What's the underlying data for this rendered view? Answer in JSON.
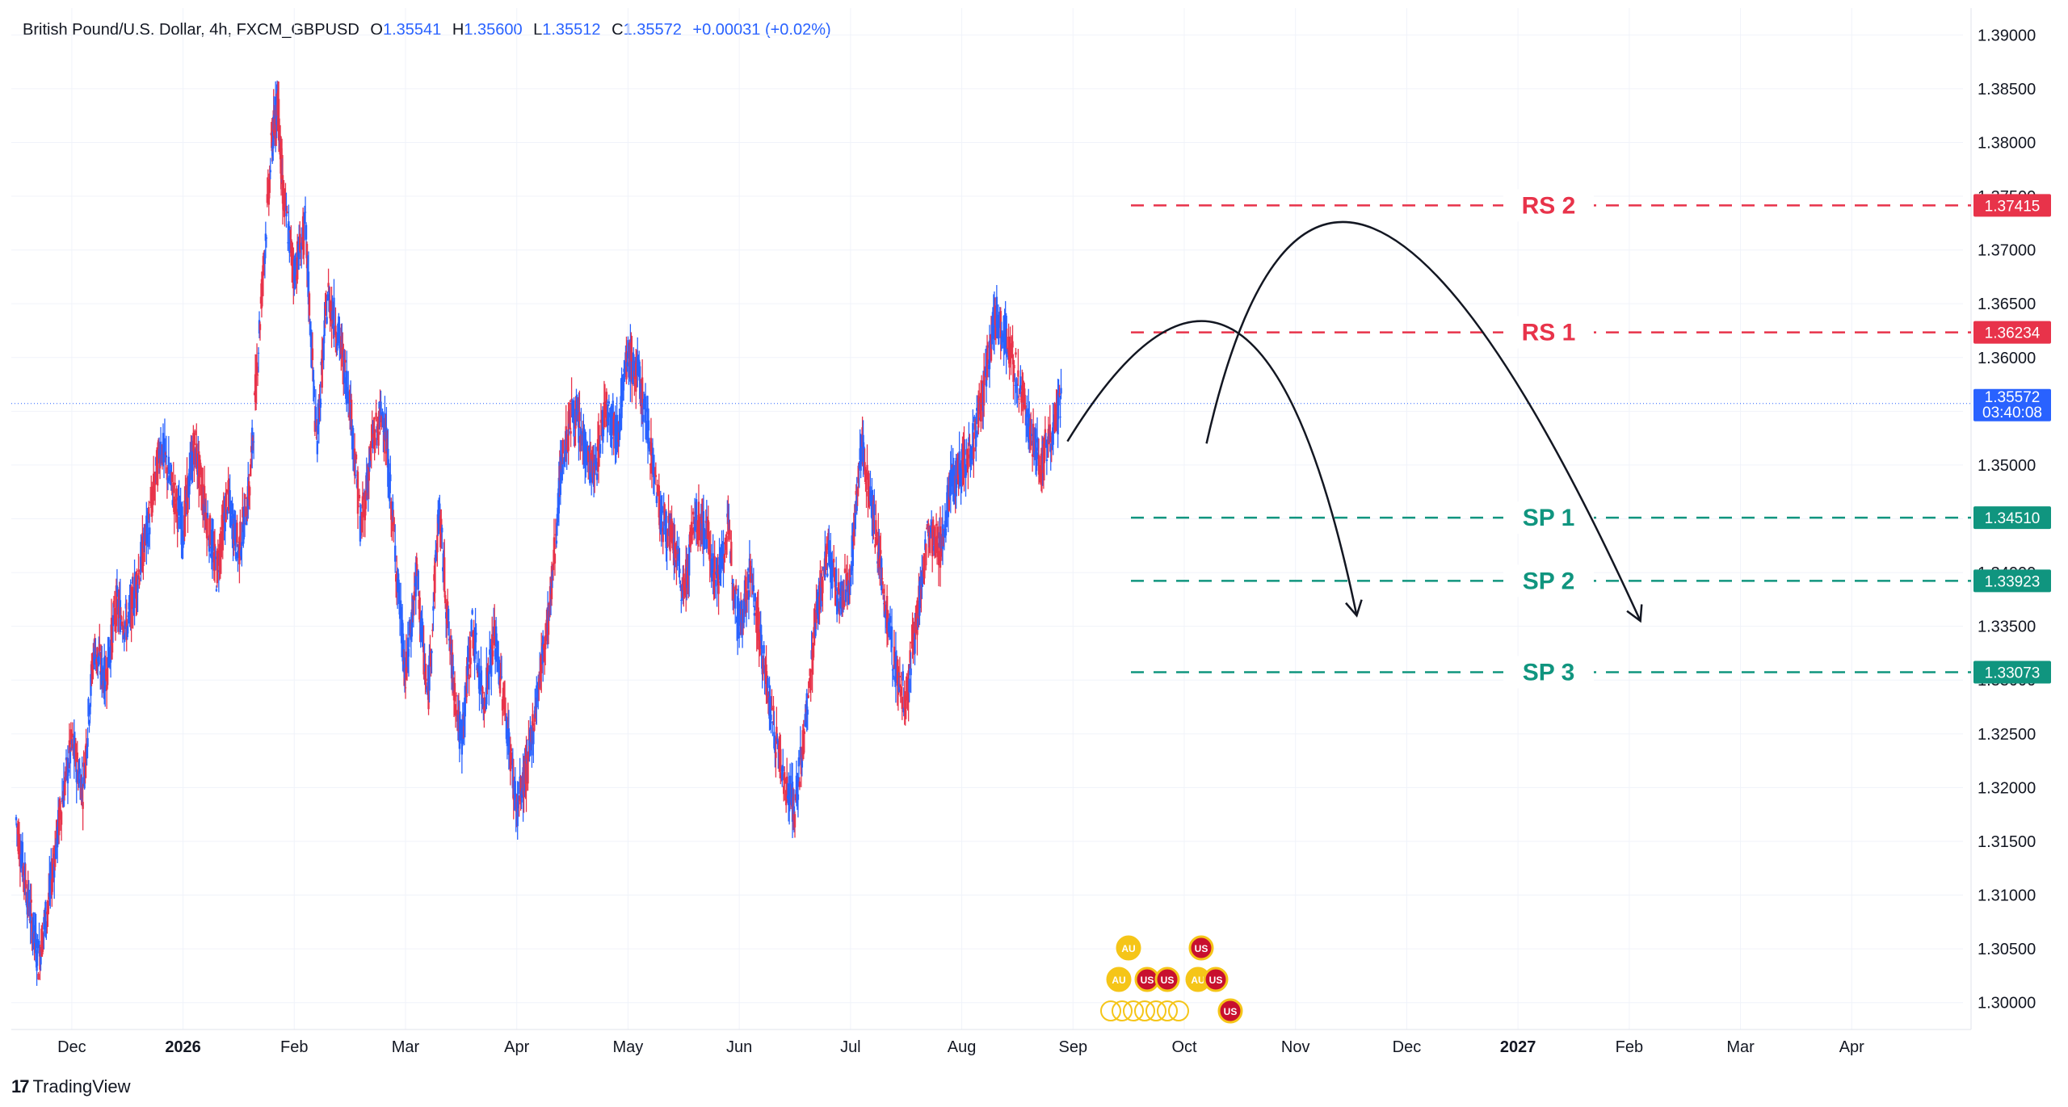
{
  "legend": {
    "symbol": "British Pound/U.S. Dollar, 4h, FXCM_GBPUSD",
    "o_label": "O",
    "o": "1.35541",
    "h_label": "H",
    "h": "1.35600",
    "l_label": "L",
    "l": "1.35512",
    "c_label": "C",
    "c": "1.35572",
    "change": "+0.00031 (+0.02%)"
  },
  "branding": {
    "name": "TradingView",
    "mark": "17"
  },
  "colors": {
    "up": "#2962ff",
    "down": "#e8334a",
    "resistance": "#e8334a",
    "support": "#10957f",
    "grid": "#f0f3fa",
    "axis_text": "#131722"
  },
  "chart_data": {
    "type": "line",
    "title": "British Pound/U.S. Dollar, 4h, FXCM_GBPUSD",
    "ylim": [
      1.2975,
      1.3925
    ],
    "y_ticks": [
      "1.30000",
      "1.30500",
      "1.31000",
      "1.31500",
      "1.32000",
      "1.32500",
      "1.33000",
      "1.33500",
      "1.34000",
      "1.34500",
      "1.35000",
      "1.35500",
      "1.36000",
      "1.36500",
      "1.37000",
      "1.37500",
      "1.38000",
      "1.38500",
      "1.39000"
    ],
    "x_ticks": [
      {
        "label": "Dec",
        "t": 0.5,
        "bold": false
      },
      {
        "label": "2026",
        "t": 1.5,
        "bold": true
      },
      {
        "label": "Feb",
        "t": 2.5,
        "bold": false
      },
      {
        "label": "Mar",
        "t": 3.5,
        "bold": false
      },
      {
        "label": "Apr",
        "t": 4.5,
        "bold": false
      },
      {
        "label": "May",
        "t": 5.5,
        "bold": false
      },
      {
        "label": "Jun",
        "t": 6.5,
        "bold": false
      },
      {
        "label": "Jul",
        "t": 7.5,
        "bold": false
      },
      {
        "label": "Aug",
        "t": 8.5,
        "bold": false
      },
      {
        "label": "Sep",
        "t": 9.5,
        "bold": false
      },
      {
        "label": "Oct",
        "t": 10.5,
        "bold": false
      },
      {
        "label": "Nov",
        "t": 11.5,
        "bold": false
      },
      {
        "label": "Dec",
        "t": 12.5,
        "bold": false
      },
      {
        "label": "2027",
        "t": 13.5,
        "bold": true
      },
      {
        "label": "Feb",
        "t": 14.5,
        "bold": false
      },
      {
        "label": "Mar",
        "t": 15.5,
        "bold": false
      },
      {
        "label": "Apr",
        "t": 16.5,
        "bold": false
      }
    ],
    "series": [
      {
        "points": [
          [
            0.0,
            1.317
          ],
          [
            0.1,
            1.31
          ],
          [
            0.2,
            1.304
          ],
          [
            0.3,
            1.31
          ],
          [
            0.4,
            1.318
          ],
          [
            0.5,
            1.324
          ],
          [
            0.6,
            1.32
          ],
          [
            0.7,
            1.333
          ],
          [
            0.8,
            1.33
          ],
          [
            0.9,
            1.337
          ],
          [
            1.0,
            1.335
          ],
          [
            1.1,
            1.34
          ],
          [
            1.2,
            1.345
          ],
          [
            1.3,
            1.352
          ],
          [
            1.4,
            1.348
          ],
          [
            1.5,
            1.344
          ],
          [
            1.6,
            1.352
          ],
          [
            1.7,
            1.346
          ],
          [
            1.8,
            1.34
          ],
          [
            1.9,
            1.347
          ],
          [
            2.0,
            1.342
          ],
          [
            2.1,
            1.348
          ],
          [
            2.2,
            1.365
          ],
          [
            2.3,
            1.38
          ],
          [
            2.35,
            1.384
          ],
          [
            2.4,
            1.375
          ],
          [
            2.5,
            1.368
          ],
          [
            2.6,
            1.372
          ],
          [
            2.7,
            1.352
          ],
          [
            2.8,
            1.366
          ],
          [
            2.9,
            1.362
          ],
          [
            3.0,
            1.356
          ],
          [
            3.1,
            1.344
          ],
          [
            3.2,
            1.352
          ],
          [
            3.3,
            1.355
          ],
          [
            3.4,
            1.343
          ],
          [
            3.5,
            1.33
          ],
          [
            3.6,
            1.34
          ],
          [
            3.7,
            1.328
          ],
          [
            3.8,
            1.346
          ],
          [
            3.9,
            1.333
          ],
          [
            4.0,
            1.324
          ],
          [
            4.1,
            1.335
          ],
          [
            4.2,
            1.328
          ],
          [
            4.3,
            1.334
          ],
          [
            4.4,
            1.327
          ],
          [
            4.5,
            1.318
          ],
          [
            4.6,
            1.322
          ],
          [
            4.7,
            1.33
          ],
          [
            4.8,
            1.337
          ],
          [
            4.9,
            1.35
          ],
          [
            5.0,
            1.355
          ],
          [
            5.1,
            1.352
          ],
          [
            5.2,
            1.349
          ],
          [
            5.3,
            1.356
          ],
          [
            5.4,
            1.353
          ],
          [
            5.5,
            1.36
          ],
          [
            5.6,
            1.358
          ],
          [
            5.7,
            1.352
          ],
          [
            5.8,
            1.345
          ],
          [
            5.9,
            1.343
          ],
          [
            6.0,
            1.338
          ],
          [
            6.1,
            1.345
          ],
          [
            6.2,
            1.344
          ],
          [
            6.3,
            1.339
          ],
          [
            6.4,
            1.344
          ],
          [
            6.5,
            1.335
          ],
          [
            6.6,
            1.34
          ],
          [
            6.7,
            1.333
          ],
          [
            6.8,
            1.326
          ],
          [
            6.9,
            1.321
          ],
          [
            7.0,
            1.318
          ],
          [
            7.1,
            1.326
          ],
          [
            7.2,
            1.337
          ],
          [
            7.3,
            1.342
          ],
          [
            7.4,
            1.337
          ],
          [
            7.5,
            1.34
          ],
          [
            7.6,
            1.352
          ],
          [
            7.7,
            1.346
          ],
          [
            7.8,
            1.338
          ],
          [
            7.9,
            1.331
          ],
          [
            8.0,
            1.328
          ],
          [
            8.1,
            1.336
          ],
          [
            8.2,
            1.344
          ],
          [
            8.3,
            1.342
          ],
          [
            8.4,
            1.348
          ],
          [
            8.5,
            1.35
          ],
          [
            8.6,
            1.352
          ],
          [
            8.7,
            1.357
          ],
          [
            8.8,
            1.364
          ],
          [
            8.9,
            1.362
          ],
          [
            9.0,
            1.358
          ],
          [
            9.1,
            1.354
          ],
          [
            9.2,
            1.35
          ],
          [
            9.3,
            1.353
          ],
          [
            9.4,
            1.35572
          ]
        ]
      }
    ],
    "last_price": "1.35572",
    "countdown": "03:40:08",
    "levels": [
      {
        "label": "RS 2",
        "value": 1.37415,
        "text": "1.37415",
        "kind": "resistance"
      },
      {
        "label": "RS 1",
        "value": 1.36234,
        "text": "1.36234",
        "kind": "resistance"
      },
      {
        "label": "SP 1",
        "value": 1.3451,
        "text": "1.34510",
        "kind": "support"
      },
      {
        "label": "SP 2",
        "value": 1.33923,
        "text": "1.33923",
        "kind": "support"
      },
      {
        "label": "SP 3",
        "value": 1.33073,
        "text": "1.33073",
        "kind": "support"
      }
    ],
    "projections": [
      {
        "start": [
          9.45,
          1.3522
        ],
        "peak": [
          10.95,
          1.3625
        ],
        "end": [
          12.05,
          1.336
        ]
      },
      {
        "start": [
          10.7,
          1.352
        ],
        "peak": [
          12.2,
          1.372
        ],
        "end": [
          14.6,
          1.3355
        ]
      }
    ],
    "event_markers": [
      "AU",
      "US"
    ]
  }
}
